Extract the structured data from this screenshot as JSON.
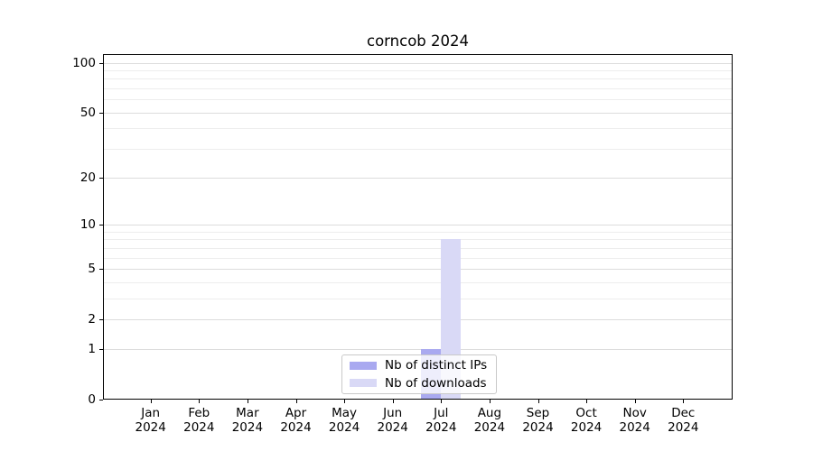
{
  "title": "corncob 2024",
  "legend": {
    "items": [
      {
        "label": "Nb of distinct IPs",
        "color": "#a9a9f0"
      },
      {
        "label": "Nb of downloads",
        "color": "#d9d9f6"
      }
    ]
  },
  "axes": {
    "x_year": "2024",
    "x_months": [
      "Jan",
      "Feb",
      "Mar",
      "Apr",
      "May",
      "Jun",
      "Jul",
      "Aug",
      "Sep",
      "Oct",
      "Nov",
      "Dec"
    ],
    "y_major_ticks": [
      0,
      1,
      2,
      5,
      10,
      20,
      50,
      100
    ],
    "y_minor_gridlines": [
      3,
      4,
      6,
      7,
      8,
      9,
      30,
      40,
      60,
      70,
      80,
      90
    ]
  },
  "chart_data": {
    "type": "bar",
    "title": "corncob 2024",
    "categories": [
      "Jan 2024",
      "Feb 2024",
      "Mar 2024",
      "Apr 2024",
      "May 2024",
      "Jun 2024",
      "Jul 2024",
      "Aug 2024",
      "Sep 2024",
      "Oct 2024",
      "Nov 2024",
      "Dec 2024"
    ],
    "series": [
      {
        "name": "Nb of distinct IPs",
        "color": "#a9a9f0",
        "values": [
          0,
          0,
          0,
          0,
          0,
          0,
          1,
          0,
          0,
          0,
          0,
          0
        ]
      },
      {
        "name": "Nb of downloads",
        "color": "#d9d9f6",
        "values": [
          0,
          0,
          0,
          0,
          0,
          0,
          8,
          0,
          0,
          0,
          0,
          0
        ]
      }
    ],
    "xlabel": "",
    "ylabel": "",
    "yscale": "log1p",
    "ylim": [
      0,
      113
    ],
    "y_tick_values": [
      0,
      1,
      2,
      5,
      10,
      20,
      50,
      100
    ],
    "grid": true,
    "legend_position": "lower center"
  }
}
